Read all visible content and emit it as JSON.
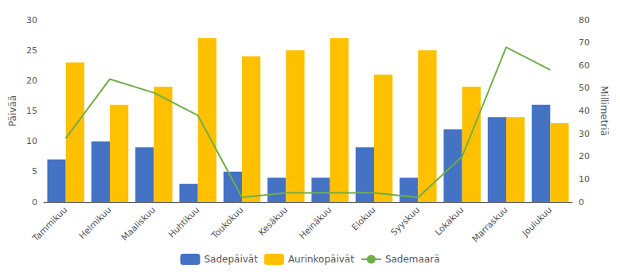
{
  "chart_data": {
    "type": "bar",
    "categories": [
      "Tammikuu",
      "Helmikuu",
      "Maaliskuu",
      "Huhtikuu",
      "Toukokuu",
      "Kesäkuu",
      "Heinäkuu",
      "Elokuu",
      "Syyskuu",
      "Lokakuu",
      "Marraskuu",
      "Joulukuu"
    ],
    "ylabel": "Päivää",
    "y2label": "Millimetriä",
    "ylim": [
      0,
      30
    ],
    "yticks": [
      0,
      5,
      10,
      15,
      20,
      25,
      30
    ],
    "y2lim": [
      0,
      80
    ],
    "y2ticks": [
      0,
      10,
      20,
      30,
      40,
      50,
      60,
      70,
      80
    ],
    "grid": false,
    "legend": "bottom",
    "series": [
      {
        "name": "Sadepäivät",
        "type": "bar",
        "color": "#4472C4",
        "values": [
          7,
          10,
          9,
          3,
          5,
          4,
          4,
          9,
          4,
          12,
          14,
          16
        ]
      },
      {
        "name": "Aurinkopäivät",
        "type": "bar",
        "color": "#FFC000",
        "values": [
          23,
          16,
          19,
          27,
          24,
          25,
          27,
          21,
          25,
          19,
          14,
          13
        ]
      },
      {
        "name": "Sademaarä",
        "type": "line",
        "axis": "y2",
        "color": "#70AD47",
        "values": [
          28,
          54,
          48,
          38,
          2,
          4,
          4,
          4,
          2,
          20,
          68,
          58
        ]
      }
    ]
  }
}
